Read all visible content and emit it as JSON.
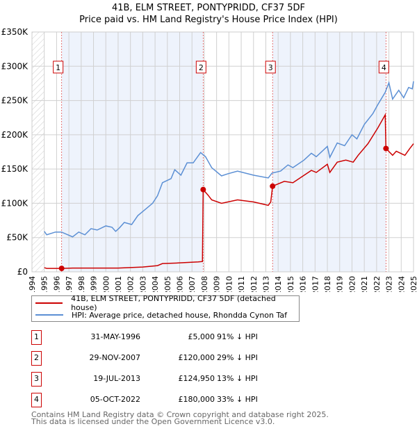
{
  "title": "41B, ELM STREET, PONTYPRIDD, CF37 5DF",
  "subtitle": "Price paid vs. HM Land Registry's House Price Index (HPI)",
  "chart_data": {
    "type": "line",
    "title": "41B, ELM STREET, PONTYPRIDD, CF37 5DF",
    "subtitle": "Price paid vs. HM Land Registry's House Price Index (HPI)",
    "xlim": [
      1994,
      2025
    ],
    "ylim": [
      0,
      350000
    ],
    "x_ticks": [
      "1994",
      "1995",
      "1996",
      "1997",
      "1998",
      "1999",
      "2000",
      "2001",
      "2002",
      "2003",
      "2004",
      "2005",
      "2006",
      "2007",
      "2008",
      "2009",
      "2010",
      "2011",
      "2012",
      "2013",
      "2014",
      "2015",
      "2016",
      "2017",
      "2018",
      "2019",
      "2020",
      "2021",
      "2022",
      "2023",
      "2024",
      "2025"
    ],
    "y_ticks": [
      {
        "v": 0,
        "label": "£0"
      },
      {
        "v": 50000,
        "label": "£50K"
      },
      {
        "v": 100000,
        "label": "£100K"
      },
      {
        "v": 150000,
        "label": "£150K"
      },
      {
        "v": 200000,
        "label": "£200K"
      },
      {
        "v": 250000,
        "label": "£250K"
      },
      {
        "v": 300000,
        "label": "£300K"
      },
      {
        "v": 350000,
        "label": "£350K"
      }
    ],
    "grid": true,
    "colors": {
      "property": "#cc0000",
      "hpi": "#5b8fd4",
      "shade": "#eef3fc"
    },
    "series": [
      {
        "name": "41B, ELM STREET, PONTYPRIDD, CF37 5DF (detached house)",
        "x": [
          1995,
          1995.2,
          1996.41,
          1997.3,
          1999,
          2001,
          2003,
          2004.2,
          2004.6,
          2006,
          2007.5,
          2007.85,
          2007.91,
          2008.3,
          2008.6,
          2009.4,
          2010.7,
          2012,
          2013.2,
          2013.4,
          2013.55,
          2014.5,
          2015.2,
          2016.7,
          2017.1,
          2018,
          2018.2,
          2018.8,
          2019.5,
          2020.1,
          2020.5,
          2021.3,
          2022.1,
          2022.7,
          2022.76,
          2023.3,
          2023.6,
          2024.3,
          2024.7,
          2025
        ],
        "y": [
          6000,
          5000,
          5000,
          5500,
          5500,
          5500,
          7000,
          9000,
          12000,
          13000,
          14500,
          15000,
          120000,
          112000,
          105000,
          100000,
          105000,
          102000,
          97000,
          102000,
          124950,
          132000,
          130000,
          148000,
          145000,
          157000,
          145000,
          160000,
          163000,
          160000,
          170000,
          187000,
          210000,
          229000,
          180000,
          170000,
          176000,
          170000,
          180000,
          187000
        ]
      },
      {
        "name": "HPI: Average price, detached house, Rhondda Cynon Taf",
        "x": [
          1995,
          1995.2,
          1995.9,
          1996.4,
          1997.3,
          1997.8,
          1998.3,
          1998.8,
          1999.3,
          2000,
          2000.5,
          2000.8,
          2001.1,
          2001.5,
          2002.1,
          2002.6,
          2003.2,
          2003.8,
          2004.2,
          2004.6,
          2005.3,
          2005.6,
          2006.1,
          2006.6,
          2007.1,
          2007.7,
          2008.1,
          2008.6,
          2009.4,
          2009.9,
          2010.7,
          2012,
          2013.2,
          2013.5,
          2014.2,
          2014.8,
          2015.2,
          2016.1,
          2016.7,
          2017.1,
          2018,
          2018.2,
          2018.8,
          2019.4,
          2020,
          2020.4,
          2021,
          2021.7,
          2022.1,
          2022.7,
          2023,
          2023.3,
          2023.8,
          2024.2,
          2024.6,
          2024.9,
          2025
        ],
        "y": [
          59000,
          54000,
          58000,
          58000,
          51000,
          58000,
          54000,
          63000,
          61000,
          67000,
          65000,
          59000,
          64000,
          72000,
          69000,
          82000,
          91000,
          100000,
          111000,
          130000,
          136000,
          149000,
          141000,
          159000,
          159000,
          174000,
          168000,
          152000,
          140000,
          143000,
          147000,
          141000,
          137000,
          144000,
          147000,
          156000,
          152000,
          163000,
          173000,
          168000,
          183000,
          167000,
          188000,
          184000,
          200000,
          194000,
          215000,
          231000,
          244000,
          262000,
          276000,
          252000,
          265000,
          254000,
          269000,
          267000,
          278000
        ]
      }
    ],
    "sales": [
      {
        "num": "1",
        "x": 1996.41,
        "date": "31-MAY-1996",
        "price_value": 5000,
        "price": "£5,000",
        "hpi": "91% ↓ HPI"
      },
      {
        "num": "2",
        "x": 2007.91,
        "date": "29-NOV-2007",
        "price_value": 120000,
        "price": "£120,000",
        "hpi": "29% ↓ HPI"
      },
      {
        "num": "3",
        "x": 2013.55,
        "date": "19-JUL-2013",
        "price_value": 124950,
        "price": "£124,950",
        "hpi": "13% ↓ HPI"
      },
      {
        "num": "4",
        "x": 2022.76,
        "date": "05-OCT-2022",
        "price_value": 180000,
        "price": "£180,000",
        "hpi": "33% ↓ HPI"
      }
    ]
  },
  "legend": {
    "property": "41B, ELM STREET, PONTYPRIDD, CF37 5DF (detached house)",
    "hpi": "HPI: Average price, detached house, Rhondda Cynon Taf"
  },
  "footer": {
    "line1": "Contains HM Land Registry data © Crown copyright and database right 2025.",
    "line2": "This data is licensed under the Open Government Licence v3.0."
  }
}
